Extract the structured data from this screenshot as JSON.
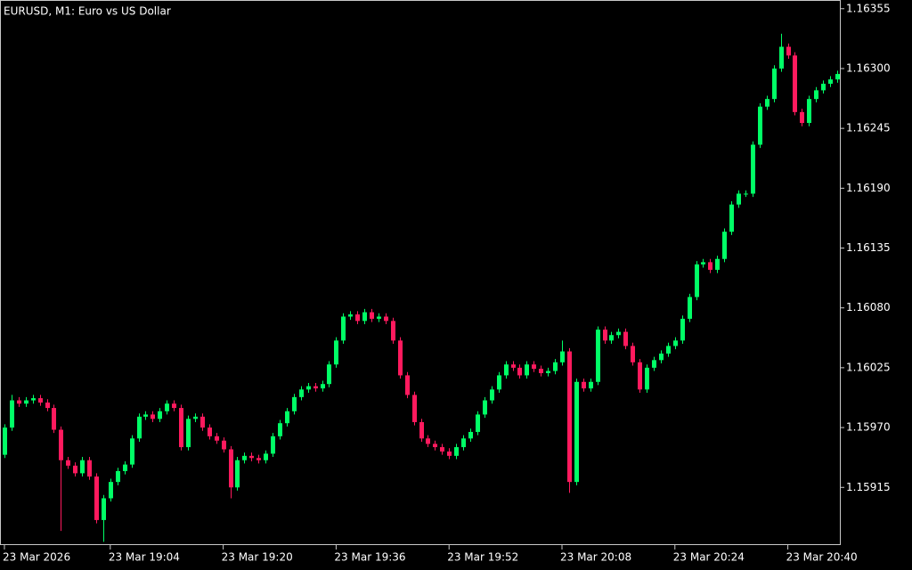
{
  "chart_data": {
    "type": "candlestick",
    "title": "EURUSD, M1:  Euro vs US Dollar",
    "up_color": "#00ff66",
    "down_color": "#ff1a5e",
    "grid": false,
    "categories": [
      "23 Mar 2026",
      null,
      null,
      null,
      null,
      null,
      null,
      null,
      null,
      null,
      null,
      null,
      null,
      null,
      null,
      "23 Mar 19:04",
      null,
      null,
      null,
      null,
      null,
      null,
      null,
      null,
      null,
      null,
      null,
      null,
      null,
      null,
      null,
      "23 Mar 19:20",
      null,
      null,
      null,
      null,
      null,
      null,
      null,
      null,
      null,
      null,
      null,
      null,
      null,
      null,
      null,
      "23 Mar 19:36",
      null,
      null,
      null,
      null,
      null,
      null,
      null,
      null,
      null,
      null,
      null,
      null,
      null,
      null,
      null,
      "23 Mar 19:52",
      null,
      null,
      null,
      null,
      null,
      null,
      null,
      null,
      null,
      null,
      null,
      null,
      null,
      null,
      null,
      "23 Mar 20:08",
      null,
      null,
      null,
      null,
      null,
      null,
      null,
      null,
      null,
      null,
      null,
      null,
      null,
      null,
      null,
      "23 Mar 20:24",
      null,
      null,
      null,
      null,
      null,
      null,
      null,
      null,
      null,
      null,
      null,
      null,
      null,
      null,
      null,
      "23 Mar 20:40",
      null,
      null,
      null,
      null,
      null,
      null,
      null
    ],
    "open": [
      1.15945,
      1.1597,
      1.15995,
      1.15992,
      1.15995,
      1.15997,
      1.15993,
      1.15988,
      1.15968,
      1.1594,
      1.15935,
      1.15928,
      1.1594,
      1.15925,
      1.15885,
      1.15905,
      1.1592,
      1.1593,
      1.15936,
      1.1596,
      1.1598,
      1.15982,
      1.15978,
      1.15985,
      1.15992,
      1.15988,
      1.15952,
      1.15978,
      1.1598,
      1.1597,
      1.15962,
      1.15958,
      1.1595,
      1.15915,
      1.1594,
      1.15944,
      1.15942,
      1.1594,
      1.15946,
      1.15962,
      1.15974,
      1.15985,
      1.15998,
      1.16005,
      1.16008,
      1.16006,
      1.1601,
      1.16028,
      1.1605,
      1.16072,
      1.16074,
      1.16068,
      1.16076,
      1.1607,
      1.16072,
      1.16068,
      1.1605,
      1.16018,
      1.16,
      1.15975,
      1.1596,
      1.15955,
      1.15952,
      1.15948,
      1.15944,
      1.15952,
      1.1596,
      1.15966,
      1.15982,
      1.15995,
      1.16005,
      1.16018,
      1.16028,
      1.16025,
      1.16018,
      1.16028,
      1.16024,
      1.1602,
      1.16022,
      1.1603,
      1.1604,
      1.1592,
      1.16012,
      1.16006,
      1.16012,
      1.1606,
      1.1605,
      1.16055,
      1.16058,
      1.16045,
      1.1603,
      1.16005,
      1.16025,
      1.16032,
      1.16038,
      1.16045,
      1.1605,
      1.1607,
      1.1609,
      1.1612,
      1.16122,
      1.16115,
      1.16125,
      1.1615,
      1.16175,
      1.16185,
      1.16185,
      1.1623,
      1.16265,
      1.16272,
      1.163,
      1.1632,
      1.16312,
      1.1626,
      1.1625,
      1.16272,
      1.1628,
      1.16286,
      1.1629
    ],
    "high": [
      1.15973,
      1.16,
      1.15998,
      1.15998,
      1.16,
      1.16,
      1.15996,
      1.15991,
      1.15971,
      1.15943,
      1.15938,
      1.15943,
      1.15943,
      1.15928,
      1.15908,
      1.15923,
      1.15933,
      1.15939,
      1.15963,
      1.15983,
      1.15985,
      1.15985,
      1.15988,
      1.15995,
      1.15995,
      1.15991,
      1.15981,
      1.15983,
      1.15983,
      1.15973,
      1.15965,
      1.15961,
      1.15953,
      1.15943,
      1.15947,
      1.15947,
      1.15945,
      1.15949,
      1.15965,
      1.15977,
      1.15988,
      1.16001,
      1.16008,
      1.16011,
      1.16011,
      1.16013,
      1.16031,
      1.16053,
      1.16075,
      1.16077,
      1.16077,
      1.16079,
      1.16079,
      1.16075,
      1.16075,
      1.16071,
      1.16053,
      1.16021,
      1.16003,
      1.15978,
      1.15963,
      1.15958,
      1.15955,
      1.15951,
      1.15955,
      1.15963,
      1.15969,
      1.15985,
      1.15998,
      1.16008,
      1.16021,
      1.16031,
      1.16031,
      1.16028,
      1.16031,
      1.16031,
      1.16027,
      1.16025,
      1.16033,
      1.1605,
      1.16043,
      1.16015,
      1.16015,
      1.16015,
      1.16063,
      1.16063,
      1.16058,
      1.16061,
      1.16061,
      1.16048,
      1.16033,
      1.16028,
      1.16035,
      1.16041,
      1.16048,
      1.16053,
      1.16073,
      1.16093,
      1.16123,
      1.16125,
      1.16125,
      1.16128,
      1.16153,
      1.16178,
      1.16188,
      1.16188,
      1.16233,
      1.16268,
      1.16275,
      1.16303,
      1.16332,
      1.16323,
      1.16315,
      1.16263,
      1.16275,
      1.16283,
      1.16289,
      1.16293,
      1.16298
    ],
    "low": [
      1.15942,
      1.15967,
      1.15989,
      1.15989,
      1.15992,
      1.1599,
      1.15985,
      1.15965,
      1.15875,
      1.15932,
      1.15925,
      1.15925,
      1.15922,
      1.15882,
      1.15865,
      1.15902,
      1.15917,
      1.15927,
      1.15933,
      1.15957,
      1.15977,
      1.15975,
      1.15975,
      1.15982,
      1.15985,
      1.15949,
      1.15949,
      1.15975,
      1.15967,
      1.15959,
      1.15955,
      1.15947,
      1.15905,
      1.15912,
      1.15937,
      1.15939,
      1.15937,
      1.15937,
      1.15943,
      1.15959,
      1.15971,
      1.15982,
      1.15995,
      1.16002,
      1.16003,
      1.16003,
      1.16007,
      1.16025,
      1.16047,
      1.16069,
      1.16065,
      1.16065,
      1.16067,
      1.16067,
      1.16065,
      1.16047,
      1.16015,
      1.15997,
      1.15972,
      1.15957,
      1.15952,
      1.15949,
      1.15945,
      1.15941,
      1.15941,
      1.15949,
      1.15957,
      1.15963,
      1.15979,
      1.15992,
      1.16002,
      1.16015,
      1.16022,
      1.16015,
      1.16015,
      1.16021,
      1.16017,
      1.16017,
      1.16019,
      1.16027,
      1.1591,
      1.15917,
      1.16003,
      1.16003,
      1.16009,
      1.16047,
      1.16047,
      1.16052,
      1.16042,
      1.16027,
      1.16002,
      1.16002,
      1.16022,
      1.16029,
      1.16035,
      1.16042,
      1.16047,
      1.16067,
      1.16087,
      1.16117,
      1.16112,
      1.16112,
      1.16122,
      1.16147,
      1.16172,
      1.16182,
      1.16182,
      1.16227,
      1.16262,
      1.16269,
      1.16297,
      1.16309,
      1.16257,
      1.16247,
      1.16247,
      1.16269,
      1.16277,
      1.16283,
      1.16287
    ],
    "close": [
      1.1597,
      1.15995,
      1.15992,
      1.15995,
      1.15997,
      1.15993,
      1.15988,
      1.15968,
      1.1594,
      1.15935,
      1.15928,
      1.1594,
      1.15925,
      1.15885,
      1.15905,
      1.1592,
      1.1593,
      1.15936,
      1.1596,
      1.1598,
      1.15982,
      1.15978,
      1.15985,
      1.15992,
      1.15988,
      1.15952,
      1.15978,
      1.1598,
      1.1597,
      1.15962,
      1.15958,
      1.1595,
      1.15915,
      1.1594,
      1.15944,
      1.15942,
      1.1594,
      1.15946,
      1.15962,
      1.15974,
      1.15985,
      1.15998,
      1.16005,
      1.16008,
      1.16006,
      1.1601,
      1.16028,
      1.1605,
      1.16072,
      1.16074,
      1.16068,
      1.16076,
      1.1607,
      1.16072,
      1.16068,
      1.1605,
      1.16018,
      1.16,
      1.15975,
      1.1596,
      1.15955,
      1.15952,
      1.15948,
      1.15944,
      1.15952,
      1.1596,
      1.15966,
      1.15982,
      1.15995,
      1.16005,
      1.16018,
      1.16028,
      1.16025,
      1.16018,
      1.16028,
      1.16024,
      1.1602,
      1.16022,
      1.1603,
      1.1604,
      1.1592,
      1.16012,
      1.16006,
      1.16012,
      1.1606,
      1.1605,
      1.16055,
      1.16058,
      1.16045,
      1.1603,
      1.16005,
      1.16025,
      1.16032,
      1.16038,
      1.16045,
      1.1605,
      1.1607,
      1.1609,
      1.1612,
      1.16122,
      1.16115,
      1.16125,
      1.1615,
      1.16175,
      1.16185,
      1.16185,
      1.1623,
      1.16265,
      1.16272,
      1.163,
      1.1632,
      1.16312,
      1.1626,
      1.1625,
      1.16272,
      1.1628,
      1.16286,
      1.1629,
      1.16295
    ],
    "ylim": [
      1.15862,
      1.16363
    ],
    "yticks": [
      1.16355,
      {
        "value": 1.163,
        "label": "1.16300"
      },
      1.16245,
      {
        "value": 1.1619,
        "label": "1.16190"
      },
      1.16135,
      {
        "value": 1.1608,
        "label": "1.16080"
      },
      1.16025,
      {
        "value": 1.1597,
        "label": "1.15970"
      },
      1.15915
    ]
  }
}
